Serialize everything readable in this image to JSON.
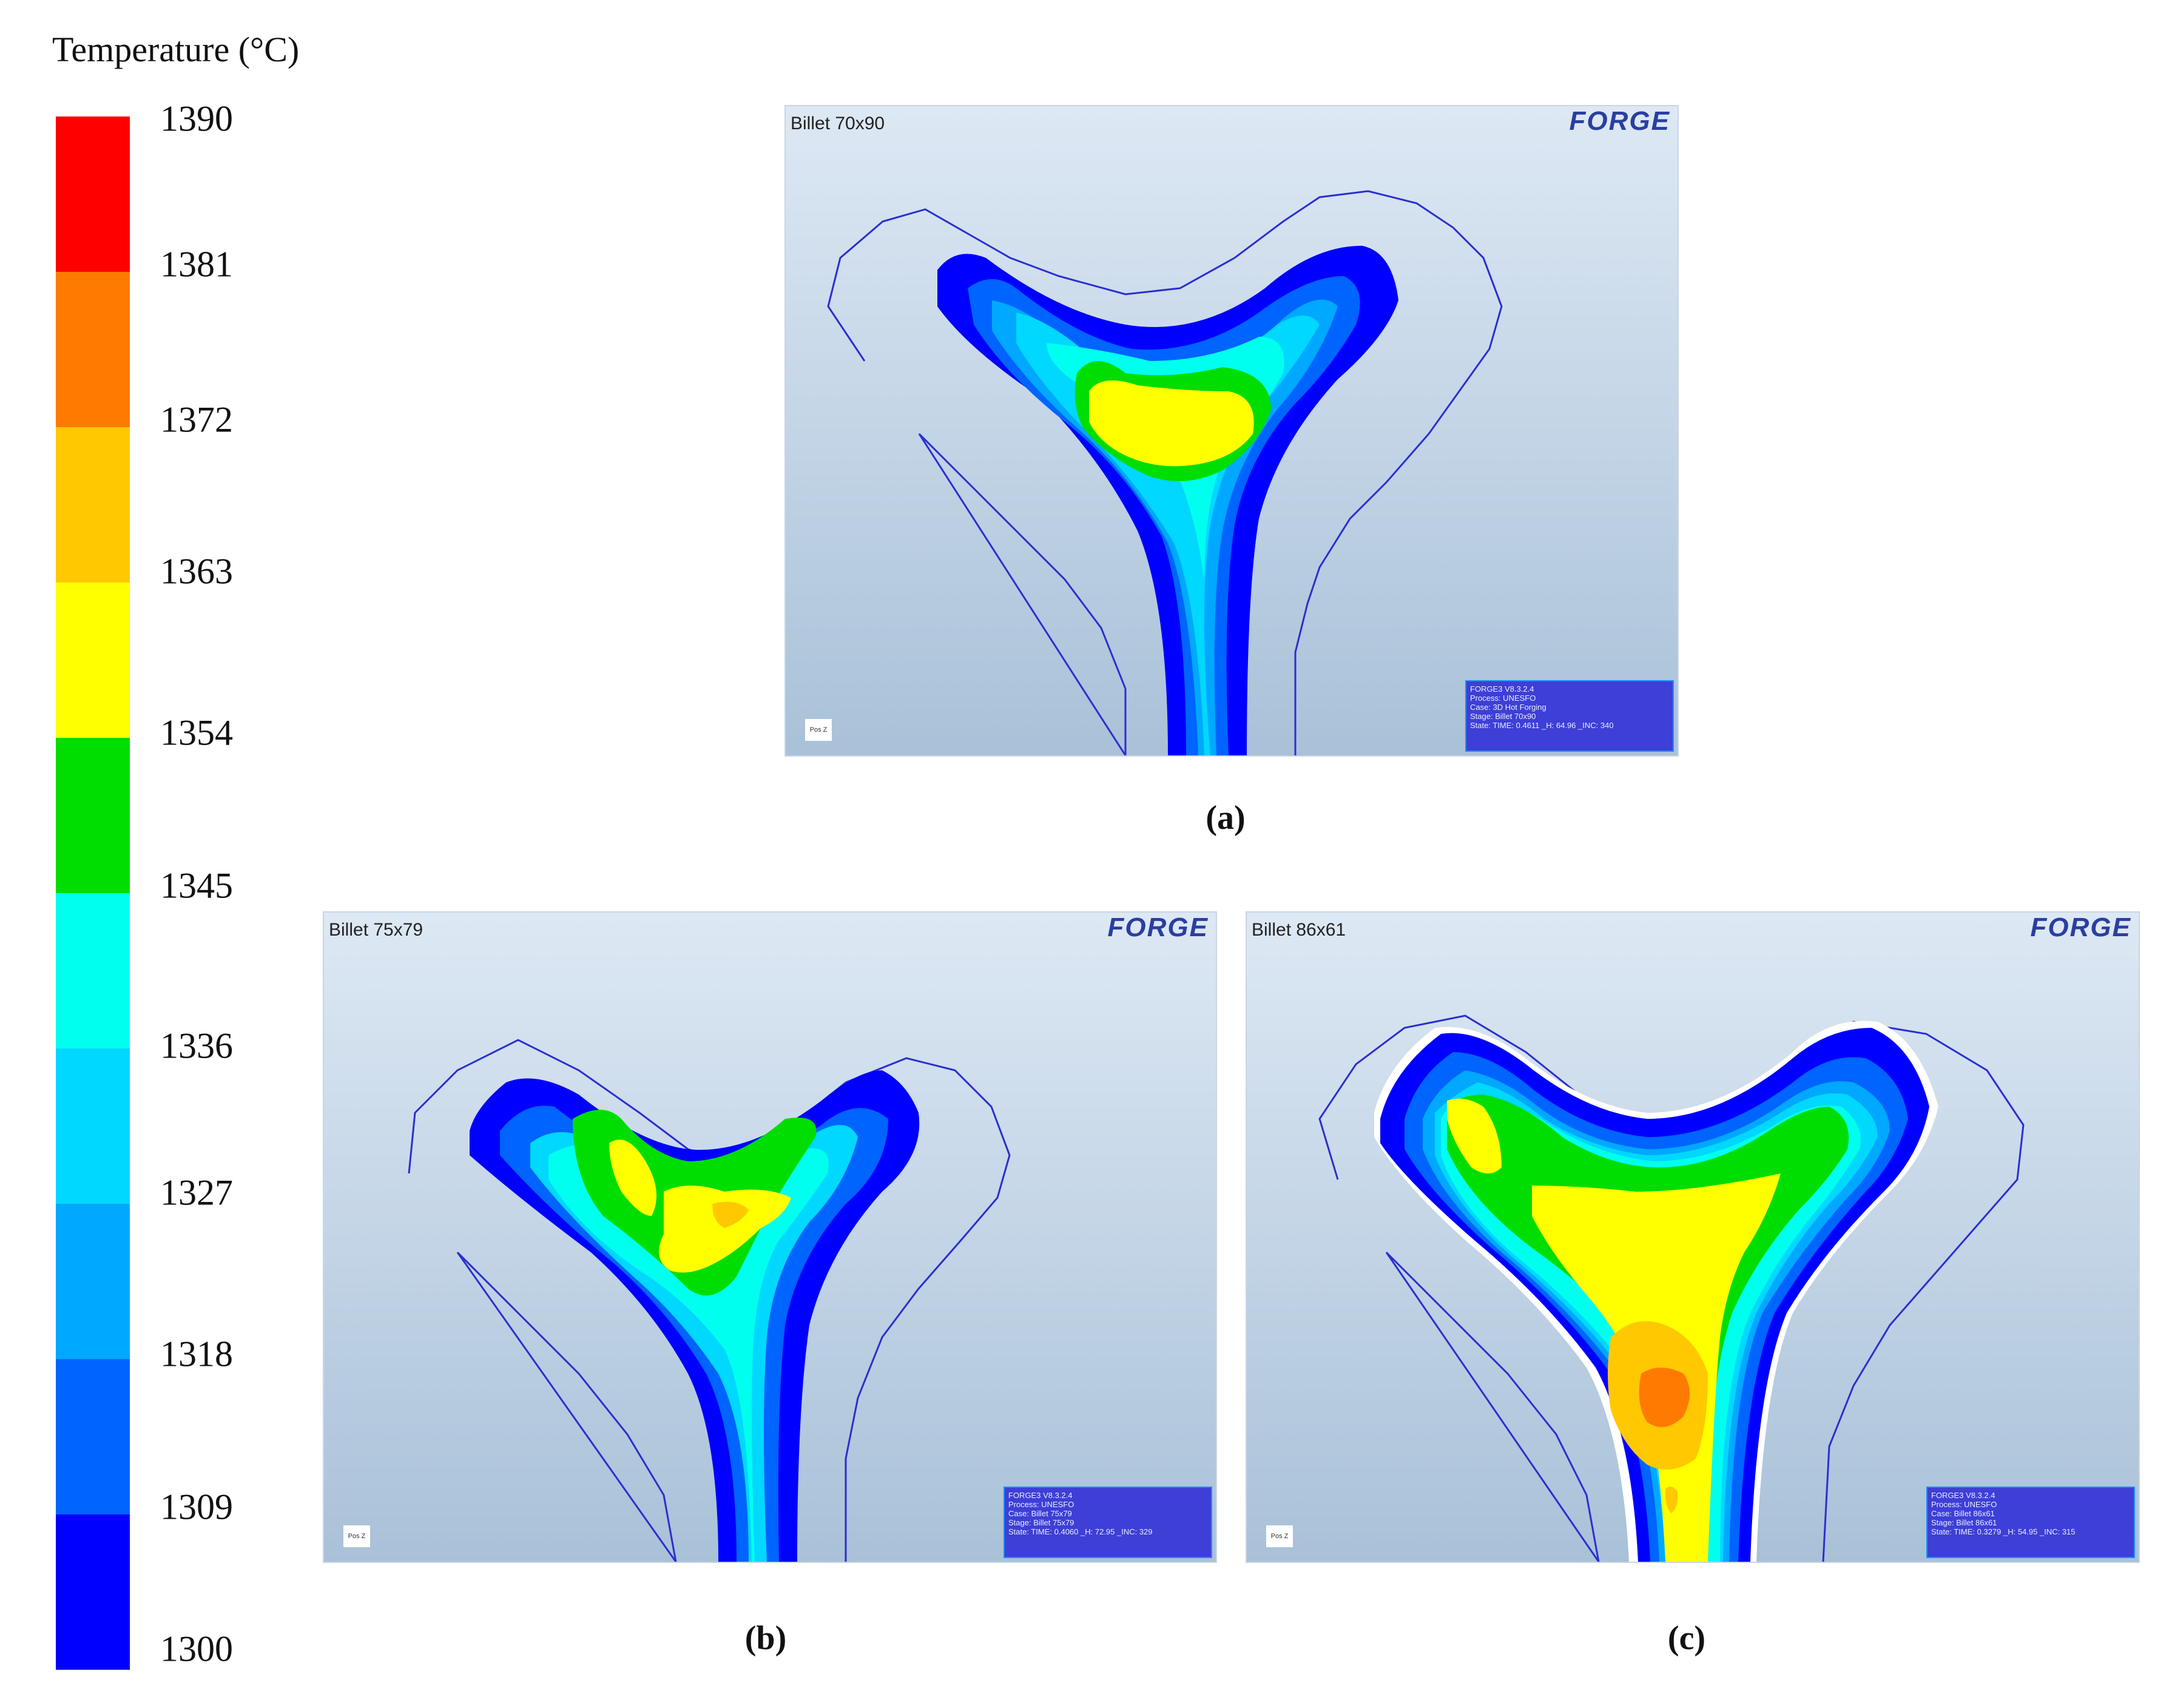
{
  "legend": {
    "title": "Temperature (°C)",
    "ticks": [
      "1390",
      "1381",
      "1372",
      "1363",
      "1354",
      "1345",
      "1336",
      "1327",
      "1318",
      "1309",
      "1300"
    ],
    "colors": [
      "#ff0000",
      "#ff7a00",
      "#ffc800",
      "#ffff00",
      "#00dd00",
      "#00ffee",
      "#00d8ff",
      "#00a8ff",
      "#0064ff",
      "#0000ff"
    ]
  },
  "panels": [
    {
      "label": "Billet 70x90",
      "logo": "FORGE",
      "caption": "(a)",
      "axis_label": "Pos Z",
      "info": [
        "FORGE3 V8.3.2.4",
        "Process: UNESFO",
        "Case:    3D Hot Forging",
        "Stage:   Billet 70x90",
        "State:   TIME: 0.4611  _H: 64.96  _INC: 340"
      ],
      "hot_core": "yellow"
    },
    {
      "label": "Billet 75x79",
      "logo": "FORGE",
      "caption": "(b)",
      "axis_label": "Pos Z",
      "info": [
        "FORGE3 V8.3.2.4",
        "Process: UNESFO",
        "Case:    Billet 75x79",
        "Stage:   Billet 75x79",
        "State:   TIME: 0.4060  _H: 72.95  _INC: 329"
      ],
      "hot_core": "yellow/orange"
    },
    {
      "label": "Billet 86x61",
      "logo": "FORGE",
      "caption": "(c)",
      "axis_label": "Pos Z",
      "info": [
        "FORGE3 V8.3.2.4",
        "Process: UNESFO",
        "Case:    Billet 86x61",
        "Stage:   Billet 86x61",
        "State:   TIME: 0.3279  _H: 54.95  _INC: 315"
      ],
      "hot_core": "orange"
    }
  ]
}
